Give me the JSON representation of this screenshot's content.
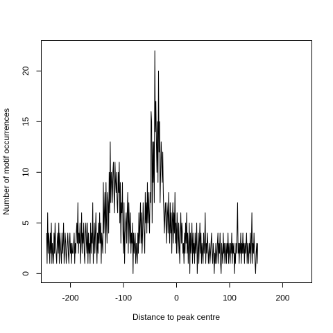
{
  "chart_data": {
    "type": "line",
    "title": "",
    "xlabel": "Distance to peak centre",
    "ylabel": "Number of motif occurrences",
    "xlim": [
      -255,
      255
    ],
    "ylim": [
      -0.9,
      23
    ],
    "xticks": [
      -200,
      -100,
      0,
      100,
      200
    ],
    "yticks": [
      0,
      5,
      10,
      15,
      20
    ],
    "grid": false,
    "legend": "none",
    "series": [
      {
        "color": "#000000",
        "x_start": -245,
        "x_step": 1,
        "values": [
          4,
          1,
          6,
          2,
          4,
          3,
          1,
          4,
          2,
          5,
          1,
          3,
          2,
          1,
          4,
          2,
          5,
          3,
          2,
          1,
          3,
          4,
          2,
          5,
          1,
          4,
          3,
          2,
          1,
          4,
          2,
          3,
          5,
          1,
          2,
          4,
          3,
          1,
          2,
          3,
          4,
          2,
          1,
          3,
          4,
          2,
          3,
          1,
          3,
          2,
          2,
          3,
          4,
          1,
          3,
          2,
          4,
          5,
          3,
          7,
          2,
          4,
          3,
          5,
          1,
          3,
          6,
          2,
          4,
          3,
          5,
          2,
          1,
          4,
          5,
          3,
          2,
          5,
          1,
          4,
          2,
          3,
          1,
          5,
          2,
          4,
          3,
          7,
          1,
          3,
          5,
          2,
          4,
          6,
          3,
          1,
          4,
          2,
          5,
          3,
          6,
          3,
          5,
          1,
          4,
          3,
          2,
          9,
          4,
          6,
          8,
          2,
          9,
          5,
          3,
          8,
          7,
          4,
          10,
          6,
          13,
          7,
          10,
          9,
          7,
          10,
          11,
          8,
          6,
          11,
          9,
          8,
          10,
          7,
          6,
          10,
          8,
          11,
          5,
          9,
          3,
          7,
          6,
          9,
          4,
          2,
          7,
          1,
          4,
          5,
          6,
          3,
          6,
          8,
          2,
          7,
          5,
          3,
          6,
          2,
          4,
          3,
          5,
          0,
          4,
          2,
          3,
          4,
          1,
          3,
          2,
          1,
          4,
          2,
          6,
          3,
          5,
          7,
          3,
          6,
          2,
          4,
          7,
          5,
          4,
          2,
          8,
          5,
          7,
          4,
          9,
          5,
          8,
          6,
          4,
          8,
          7,
          16,
          15,
          5,
          13,
          9,
          13,
          7,
          22,
          14,
          17,
          13,
          10,
          15,
          9,
          20,
          12,
          15,
          7,
          10,
          13,
          11,
          9,
          12,
          8,
          6,
          4,
          6,
          7,
          5,
          3,
          7,
          6,
          4,
          8,
          5,
          3,
          7,
          4,
          6,
          2,
          5,
          7,
          3,
          6,
          4,
          8,
          3,
          5,
          2,
          6,
          4,
          2,
          5,
          3,
          1,
          4,
          6,
          3,
          5,
          4,
          2,
          3,
          1,
          4,
          2,
          5,
          3,
          6,
          2,
          4,
          1,
          3,
          5,
          0,
          4,
          2,
          3,
          5,
          1,
          4,
          2,
          3,
          1,
          4,
          2,
          3,
          5,
          0,
          2,
          4,
          1,
          3,
          5,
          2,
          4,
          1,
          3,
          2,
          1,
          4,
          2,
          3,
          6,
          1,
          3,
          2,
          4,
          3,
          1,
          2,
          3,
          1,
          2,
          3,
          4,
          2,
          1,
          3,
          2,
          0,
          2,
          1,
          3,
          2,
          1,
          3,
          4,
          1,
          3,
          2,
          4,
          1,
          0,
          3,
          2,
          1,
          4,
          2,
          3,
          1,
          2,
          3,
          1,
          3,
          2,
          4,
          1,
          3,
          2,
          1,
          3,
          2,
          4,
          1,
          3,
          2,
          3,
          0,
          2,
          1,
          3,
          2,
          4,
          7,
          2,
          3,
          1,
          3,
          2,
          4,
          1,
          3,
          2,
          4,
          2,
          3,
          1,
          3,
          2,
          3,
          4,
          1,
          3,
          2,
          1,
          3,
          2,
          4,
          1,
          3,
          6,
          1,
          3,
          2,
          4,
          2,
          1,
          0,
          2,
          3,
          1,
          3
        ]
      }
    ]
  }
}
